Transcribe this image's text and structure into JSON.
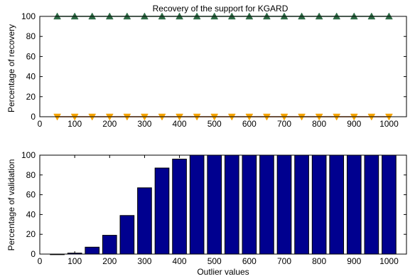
{
  "chart_data": [
    {
      "type": "line",
      "title": "Recovery of the support for KGARD",
      "xlabel": "",
      "ylabel": "Percentage of recovery",
      "xlim": [
        0,
        1050
      ],
      "ylim": [
        0,
        100
      ],
      "xticks": [
        0,
        100,
        200,
        300,
        400,
        500,
        600,
        700,
        800,
        900,
        1000
      ],
      "yticks": [
        0,
        20,
        40,
        60,
        80,
        100
      ],
      "grid": false,
      "x": [
        50,
        100,
        150,
        200,
        250,
        300,
        350,
        400,
        450,
        500,
        550,
        600,
        650,
        700,
        750,
        800,
        850,
        900,
        950,
        1000
      ],
      "series": [
        {
          "marker": "triangle-up",
          "color": "#2e6b46",
          "values": [
            100,
            100,
            100,
            100,
            100,
            100,
            100,
            100,
            100,
            100,
            100,
            100,
            100,
            100,
            100,
            100,
            100,
            100,
            100,
            100
          ]
        },
        {
          "marker": "triangle-down",
          "color": "#f5a300",
          "line_color": "#b34a00",
          "values": [
            0,
            0,
            0,
            0,
            0,
            0,
            0,
            0,
            0,
            0,
            0,
            0,
            0,
            0,
            0,
            0,
            0,
            0,
            0,
            0
          ]
        }
      ]
    },
    {
      "type": "bar",
      "title": "",
      "xlabel": "Outlier values",
      "ylabel": "Percentage of validation",
      "xlim": [
        0,
        1050
      ],
      "ylim": [
        0,
        100
      ],
      "xticks": [
        0,
        100,
        200,
        300,
        400,
        500,
        600,
        700,
        800,
        900,
        1000
      ],
      "yticks": [
        0,
        20,
        40,
        60,
        80,
        100
      ],
      "grid": false,
      "color": "#00008f",
      "x": [
        50,
        100,
        150,
        200,
        250,
        300,
        350,
        400,
        450,
        500,
        550,
        600,
        650,
        700,
        750,
        800,
        850,
        900,
        950,
        1000
      ],
      "values": [
        0,
        1,
        7,
        19,
        39,
        67,
        87,
        96,
        100,
        100,
        100,
        100,
        100,
        100,
        100,
        100,
        100,
        100,
        100,
        100
      ]
    }
  ]
}
